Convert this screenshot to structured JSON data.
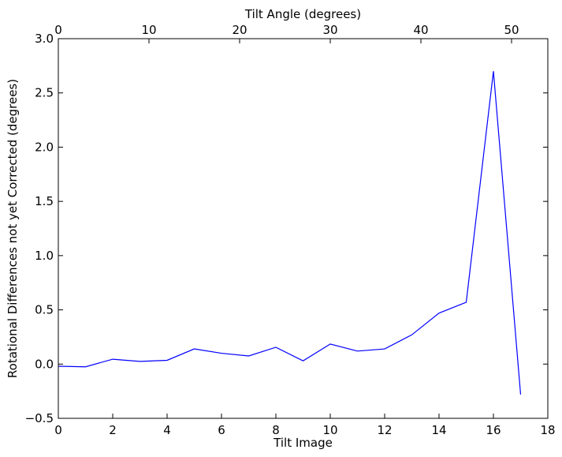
{
  "chart_data": {
    "type": "line",
    "xlabel": "Tilt Image",
    "ylabel": "Rotational Differences not yet Corrected (degrees)",
    "x2label": "Tilt Angle (degrees)",
    "xlim": [
      0,
      18
    ],
    "ylim": [
      -0.5,
      3.0
    ],
    "x2lim": [
      0,
      54
    ],
    "xticks": [
      0,
      2,
      4,
      6,
      8,
      10,
      12,
      14,
      16,
      18
    ],
    "yticks": [
      -0.5,
      0.0,
      0.5,
      1.0,
      1.5,
      2.0,
      2.5,
      3.0
    ],
    "x2ticks": [
      0,
      10,
      20,
      30,
      40,
      50
    ],
    "xtick_labels": [
      "0",
      "2",
      "4",
      "6",
      "8",
      "10",
      "12",
      "14",
      "16",
      "18"
    ],
    "ytick_labels": [
      "−0.5",
      "0.0",
      "0.5",
      "1.0",
      "1.5",
      "2.0",
      "2.5",
      "3.0"
    ],
    "x2tick_labels": [
      "0",
      "10",
      "20",
      "30",
      "40",
      "50"
    ],
    "grid": false,
    "series": [
      {
        "color": "#0000ff",
        "x": [
          0,
          1,
          2,
          3,
          4,
          5,
          6,
          7,
          8,
          9,
          10,
          11,
          12,
          13,
          14,
          15,
          16,
          17
        ],
        "y": [
          -0.02,
          -0.025,
          0.045,
          0.025,
          0.035,
          0.14,
          0.1,
          0.075,
          0.155,
          0.03,
          0.185,
          0.12,
          0.14,
          0.27,
          0.47,
          0.57,
          2.7,
          -0.28
        ]
      }
    ]
  }
}
